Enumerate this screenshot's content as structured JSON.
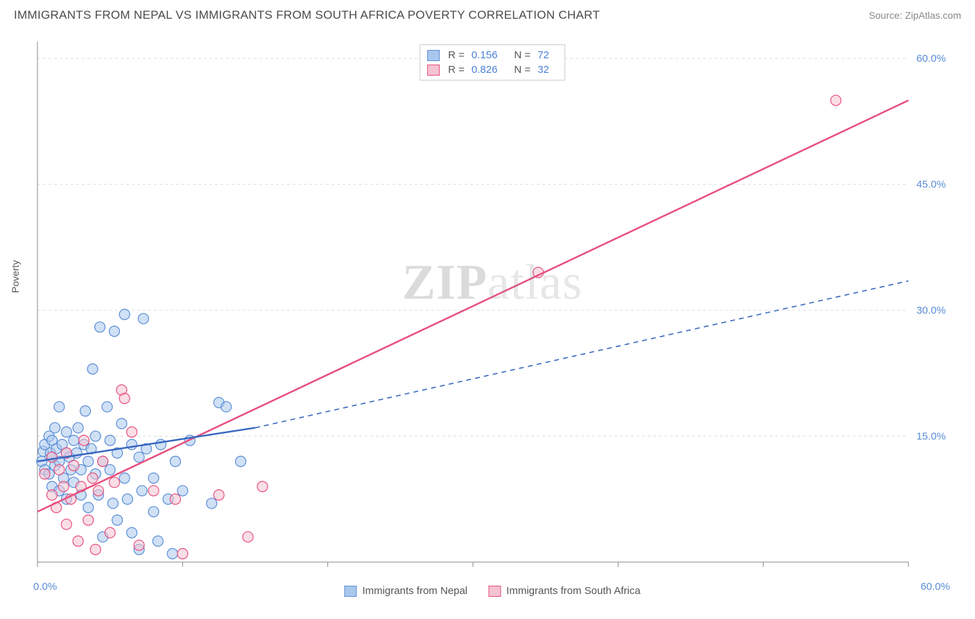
{
  "header": {
    "title": "IMMIGRANTS FROM NEPAL VS IMMIGRANTS FROM SOUTH AFRICA POVERTY CORRELATION CHART",
    "source": "Source: ZipAtlas.com"
  },
  "watermark": {
    "zip": "ZIP",
    "atlas": "atlas"
  },
  "chart": {
    "type": "scatter",
    "ylabel": "Poverty",
    "xlim": [
      0,
      60
    ],
    "ylim": [
      0,
      62
    ],
    "x_ticks": [
      0,
      10,
      20,
      30,
      40,
      50,
      60
    ],
    "y_gridlines": [
      15,
      30,
      45,
      60
    ],
    "y_tick_labels": [
      "15.0%",
      "30.0%",
      "45.0%",
      "60.0%"
    ],
    "x_axis_labels": {
      "min": "0.0%",
      "max": "60.0%"
    },
    "background_color": "#ffffff",
    "grid_color": "#dddddd",
    "axis_color": "#888888",
    "label_color": "#5a8dd6",
    "marker_radius": 7.5,
    "marker_opacity": 0.55,
    "series": [
      {
        "name": "Immigrants from Nepal",
        "key": "nepal",
        "fill_color": "#a9c7ec",
        "stroke_color": "#5a8dd6",
        "line_color": "#3968c0",
        "line_dash": "none_then_dash",
        "R": "0.156",
        "N": "72",
        "regression": {
          "x1": 0,
          "y1": 12.0,
          "x2_solid": 15,
          "y2_solid": 16.0,
          "x2": 60,
          "y2": 33.5
        },
        "points": [
          [
            0.3,
            12.0
          ],
          [
            0.4,
            13.2
          ],
          [
            0.5,
            11.0
          ],
          [
            0.5,
            14.0
          ],
          [
            0.8,
            10.5
          ],
          [
            0.8,
            15.0
          ],
          [
            0.9,
            13.0
          ],
          [
            1.0,
            12.5
          ],
          [
            1.0,
            14.5
          ],
          [
            1.0,
            9.0
          ],
          [
            1.2,
            16.0
          ],
          [
            1.2,
            11.5
          ],
          [
            1.3,
            13.5
          ],
          [
            1.5,
            12.0
          ],
          [
            1.5,
            18.5
          ],
          [
            1.5,
            8.5
          ],
          [
            1.7,
            14.0
          ],
          [
            1.8,
            10.0
          ],
          [
            2.0,
            13.0
          ],
          [
            2.0,
            15.5
          ],
          [
            2.0,
            7.5
          ],
          [
            2.2,
            12.5
          ],
          [
            2.3,
            11.0
          ],
          [
            2.5,
            14.5
          ],
          [
            2.5,
            9.5
          ],
          [
            2.7,
            13.0
          ],
          [
            2.8,
            16.0
          ],
          [
            3.0,
            11.0
          ],
          [
            3.0,
            8.0
          ],
          [
            3.2,
            14.0
          ],
          [
            3.3,
            18.0
          ],
          [
            3.5,
            12.0
          ],
          [
            3.5,
            6.5
          ],
          [
            3.7,
            13.5
          ],
          [
            3.8,
            23.0
          ],
          [
            4.0,
            10.5
          ],
          [
            4.0,
            15.0
          ],
          [
            4.2,
            8.0
          ],
          [
            4.3,
            28.0
          ],
          [
            4.5,
            12.0
          ],
          [
            4.5,
            3.0
          ],
          [
            4.8,
            18.5
          ],
          [
            5.0,
            11.0
          ],
          [
            5.0,
            14.5
          ],
          [
            5.2,
            7.0
          ],
          [
            5.3,
            27.5
          ],
          [
            5.5,
            13.0
          ],
          [
            5.5,
            5.0
          ],
          [
            5.8,
            16.5
          ],
          [
            6.0,
            10.0
          ],
          [
            6.0,
            29.5
          ],
          [
            6.2,
            7.5
          ],
          [
            6.5,
            14.0
          ],
          [
            6.5,
            3.5
          ],
          [
            7.0,
            12.5
          ],
          [
            7.0,
            1.5
          ],
          [
            7.2,
            8.5
          ],
          [
            7.3,
            29.0
          ],
          [
            7.5,
            13.5
          ],
          [
            8.0,
            10.0
          ],
          [
            8.0,
            6.0
          ],
          [
            8.3,
            2.5
          ],
          [
            8.5,
            14.0
          ],
          [
            9.0,
            7.5
          ],
          [
            9.3,
            1.0
          ],
          [
            9.5,
            12.0
          ],
          [
            10.0,
            8.5
          ],
          [
            10.5,
            14.5
          ],
          [
            12.0,
            7.0
          ],
          [
            12.5,
            19.0
          ],
          [
            13.0,
            18.5
          ],
          [
            14.0,
            12.0
          ]
        ]
      },
      {
        "name": "Immigrants from South Africa",
        "key": "south_africa",
        "fill_color": "#f4c2d0",
        "stroke_color": "#e84f7e",
        "line_color": "#e84f7e",
        "line_dash": "none",
        "R": "0.826",
        "N": "32",
        "regression": {
          "x1": 0,
          "y1": 6.0,
          "x2": 60,
          "y2": 55.0
        },
        "points": [
          [
            0.5,
            10.5
          ],
          [
            1.0,
            8.0
          ],
          [
            1.0,
            12.5
          ],
          [
            1.3,
            6.5
          ],
          [
            1.5,
            11.0
          ],
          [
            1.8,
            9.0
          ],
          [
            2.0,
            13.0
          ],
          [
            2.0,
            4.5
          ],
          [
            2.3,
            7.5
          ],
          [
            2.5,
            11.5
          ],
          [
            2.8,
            2.5
          ],
          [
            3.0,
            9.0
          ],
          [
            3.2,
            14.5
          ],
          [
            3.5,
            5.0
          ],
          [
            3.8,
            10.0
          ],
          [
            4.0,
            1.5
          ],
          [
            4.2,
            8.5
          ],
          [
            4.5,
            12.0
          ],
          [
            5.0,
            3.5
          ],
          [
            5.3,
            9.5
          ],
          [
            5.8,
            20.5
          ],
          [
            6.0,
            19.5
          ],
          [
            6.5,
            15.5
          ],
          [
            7.0,
            2.0
          ],
          [
            8.0,
            8.5
          ],
          [
            9.5,
            7.5
          ],
          [
            10.0,
            1.0
          ],
          [
            12.5,
            8.0
          ],
          [
            14.5,
            3.0
          ],
          [
            15.5,
            9.0
          ],
          [
            34.5,
            34.5
          ],
          [
            55.0,
            55.0
          ]
        ]
      }
    ],
    "stats_legend_labels": {
      "R": "R =",
      "N": "N ="
    },
    "bottom_legend": [
      {
        "label": "Immigrants from Nepal",
        "fill": "#a9c7ec",
        "stroke": "#5a8dd6"
      },
      {
        "label": "Immigrants from South Africa",
        "fill": "#f4c2d0",
        "stroke": "#e84f7e"
      }
    ]
  }
}
